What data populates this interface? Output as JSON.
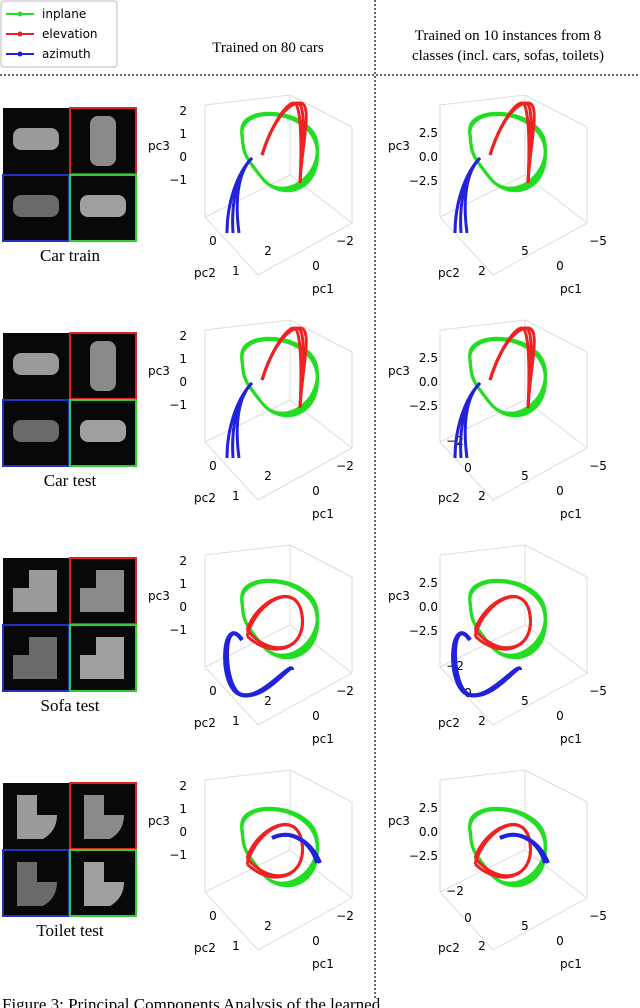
{
  "legend": [
    {
      "label": "inplane",
      "color": "#22dd22"
    },
    {
      "label": "elevation",
      "color": "#ee2222"
    },
    {
      "label": "azimuth",
      "color": "#2222dd"
    }
  ],
  "columns": [
    [
      "Trained on 80 cars"
    ],
    [
      "Trained on 10 instances from 8",
      "classes (incl. cars, sofas, toilets)"
    ]
  ],
  "rows": [
    {
      "label": "Car train",
      "plots": [
        {
          "pc3": "pc3",
          "pc3_ticks": [
            "2",
            "1",
            "0",
            "−1"
          ],
          "pc2": "pc2",
          "pc2_ticks": [
            "0",
            "1"
          ],
          "pc1": "pc1",
          "pc1_ticks": [
            "2",
            "0",
            "−2"
          ]
        },
        {
          "pc3": "pc3",
          "pc3_ticks": [
            "2.5",
            "0.0",
            "−2.5"
          ],
          "pc2": "pc2",
          "pc2_ticks": [
            "2"
          ],
          "pc1": "pc1",
          "pc1_ticks": [
            "5",
            "0",
            "−5"
          ]
        }
      ]
    },
    {
      "label": "Car test",
      "plots": [
        {
          "pc3": "pc3",
          "pc3_ticks": [
            "2",
            "1",
            "0",
            "−1"
          ],
          "pc2": "pc2",
          "pc2_ticks": [
            "0",
            "1"
          ],
          "pc1": "pc1",
          "pc1_ticks": [
            "2",
            "0",
            "−2"
          ]
        },
        {
          "pc3": "pc3",
          "pc3_ticks": [
            "2.5",
            "0.0",
            "−2.5"
          ],
          "pc2": "pc2",
          "pc2_ticks": [
            "−2",
            "0",
            "2"
          ],
          "pc1": "pc1",
          "pc1_ticks": [
            "5",
            "0",
            "−5"
          ]
        }
      ]
    },
    {
      "label": "Sofa test",
      "plots": [
        {
          "pc3": "pc3",
          "pc3_ticks": [
            "2",
            "1",
            "0",
            "−1"
          ],
          "pc2": "pc2",
          "pc2_ticks": [
            "0",
            "1"
          ],
          "pc1": "pc1",
          "pc1_ticks": [
            "2",
            "0",
            "−2"
          ]
        },
        {
          "pc3": "pc3",
          "pc3_ticks": [
            "2.5",
            "0.0",
            "−2.5"
          ],
          "pc2": "pc2",
          "pc2_ticks": [
            "−2",
            "0",
            "2"
          ],
          "pc1": "pc1",
          "pc1_ticks": [
            "5",
            "0",
            "−5"
          ]
        }
      ]
    },
    {
      "label": "Toilet test",
      "plots": [
        {
          "pc3": "pc3",
          "pc3_ticks": [
            "2",
            "1",
            "0",
            "−1"
          ],
          "pc2": "pc2",
          "pc2_ticks": [
            "0",
            "1"
          ],
          "pc1": "pc1",
          "pc1_ticks": [
            "2",
            "0",
            "−2"
          ]
        },
        {
          "pc3": "pc3",
          "pc3_ticks": [
            "2.5",
            "0.0",
            "−2.5"
          ],
          "pc2": "pc2",
          "pc2_ticks": [
            "−2",
            "0",
            "2"
          ],
          "pc1": "pc1",
          "pc1_ticks": [
            "5",
            "0",
            "−5"
          ]
        }
      ]
    }
  ],
  "caption": "Figure 3: Principal Components Analysis of the learned"
}
